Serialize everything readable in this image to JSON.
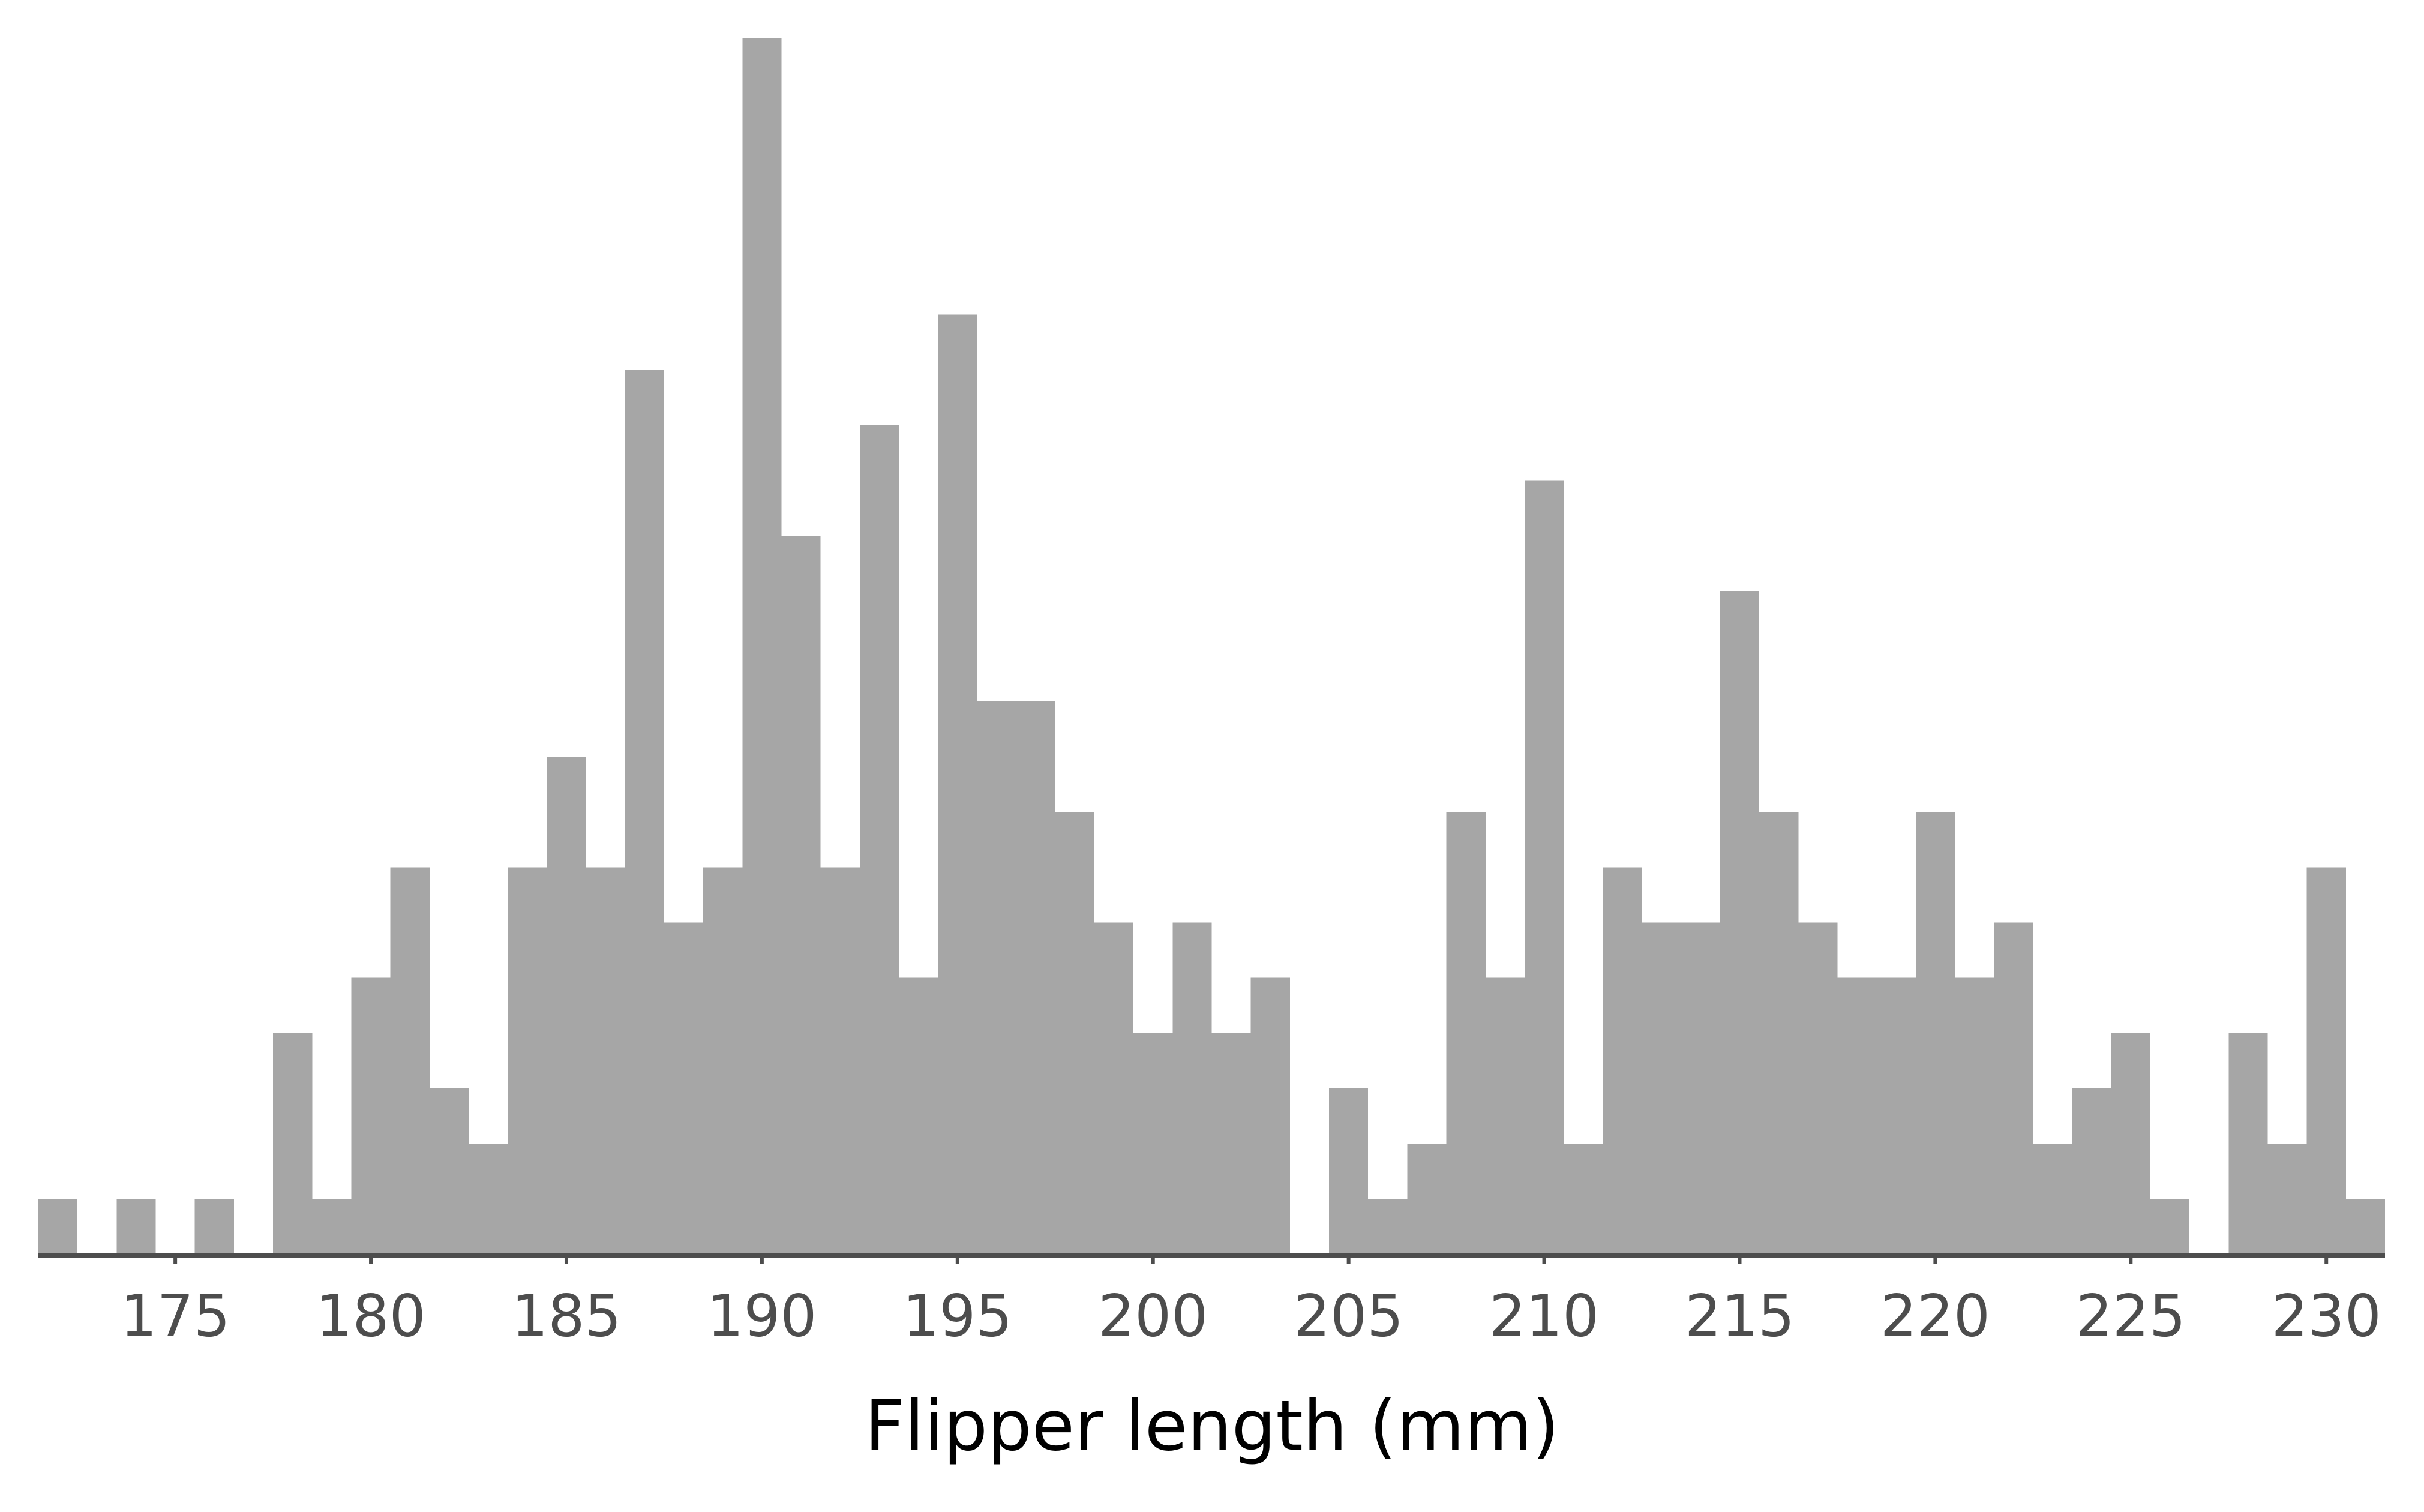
{
  "chart_data": {
    "type": "histogram",
    "xlabel": "Flipper length (mm)",
    "bins": [
      171.5,
      172.5,
      173.5,
      174.5,
      175.5,
      176.5,
      177.5,
      178.5,
      179.5,
      180.5,
      181.5,
      182.5,
      183.5,
      184.5,
      185.5,
      186.5,
      187.5,
      188.5,
      189.5,
      190.5,
      191.5,
      192.5,
      193.5,
      194.5,
      195.5,
      196.5,
      197.5,
      198.5,
      199.5,
      200.5,
      201.5,
      202.5,
      203.5,
      204.5,
      205.5,
      206.5,
      207.5,
      208.5,
      209.5,
      210.5,
      211.5,
      212.5,
      213.5,
      214.5,
      215.5,
      216.5,
      217.5,
      218.5,
      219.5,
      220.5,
      221.5,
      222.5,
      223.5,
      224.5,
      225.5,
      226.5,
      227.5,
      228.5,
      229.5,
      230.5,
      231.5
    ],
    "values": [
      1,
      0,
      1,
      0,
      1,
      0,
      4,
      1,
      5,
      7,
      3,
      2,
      7,
      9,
      7,
      16,
      6,
      7,
      22,
      13,
      7,
      15,
      5,
      17,
      10,
      10,
      8,
      6,
      4,
      6,
      4,
      5,
      0,
      3,
      1,
      2,
      8,
      5,
      14,
      2,
      7,
      6,
      6,
      12,
      8,
      6,
      5,
      5,
      8,
      5,
      6,
      2,
      3,
      4,
      1,
      0,
      4,
      2,
      7,
      1
    ],
    "color": "#a6a6a6",
    "xlim": [
      171.5,
      231.5
    ],
    "xticks": [
      175,
      180,
      185,
      190,
      195,
      200,
      205,
      210,
      215,
      220,
      225,
      230
    ],
    "ylim": [
      0,
      22
    ]
  }
}
